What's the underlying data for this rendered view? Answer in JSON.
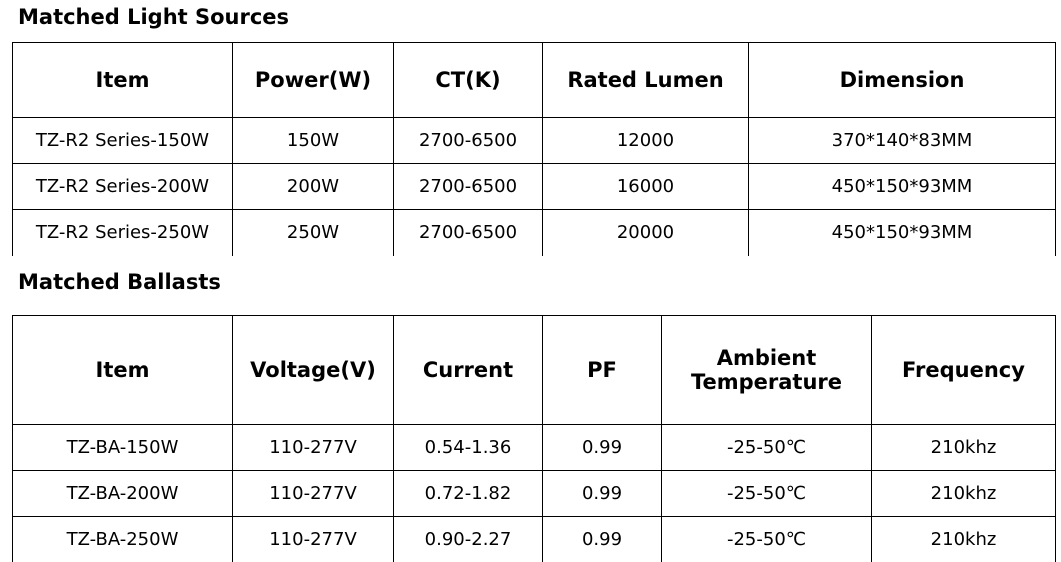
{
  "sections": [
    {
      "title": "Matched Light Sources",
      "table": {
        "header": [
          "Item",
          "Power(W)",
          "CT(K)",
          "Rated Lumen",
          "Dimension"
        ],
        "rows": [
          [
            "TZ-R2 Series-150W",
            "150W",
            "2700-6500",
            "12000",
            "370*140*83MM"
          ],
          [
            "TZ-R2 Series-200W",
            "200W",
            "2700-6500",
            "16000",
            "450*150*93MM"
          ],
          [
            "TZ-R2 Series-250W",
            "250W",
            "2700-6500",
            "20000",
            "450*150*93MM"
          ]
        ]
      }
    },
    {
      "title": "Matched Ballasts",
      "table": {
        "header": [
          "Item",
          "Voltage(V)",
          "Current",
          "PF",
          "Ambient Temperature",
          "Frequency"
        ],
        "rows": [
          [
            "TZ-BA-150W",
            "110-277V",
            "0.54-1.36",
            "0.99",
            "-25-50℃",
            "210khz"
          ],
          [
            "TZ-BA-200W",
            "110-277V",
            "0.72-1.82",
            "0.99",
            "-25-50℃",
            "210khz"
          ],
          [
            "TZ-BA-250W",
            "110-277V",
            "0.90-2.27",
            "0.99",
            "-25-50℃",
            "210khz"
          ]
        ]
      }
    }
  ]
}
